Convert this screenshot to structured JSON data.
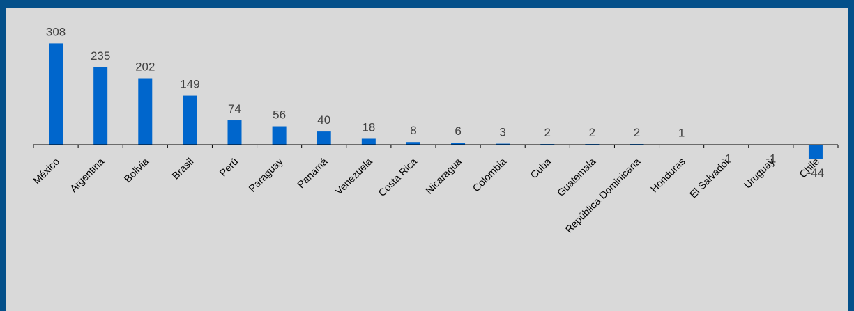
{
  "chart_data": {
    "type": "bar",
    "categories": [
      "México",
      "Argentina",
      "Bolivia",
      "Brasil",
      "Perú",
      "Paraguay",
      "Panamá",
      "Venezuela",
      "Costa Rica",
      "Nicaragua",
      "Colombia",
      "Cuba",
      "Guatemala",
      "República Dominicana",
      "Honduras",
      "El Salvador",
      "Uruguay",
      "Chile"
    ],
    "values": [
      308,
      235,
      202,
      149,
      74,
      56,
      40,
      18,
      8,
      6,
      3,
      2,
      2,
      2,
      1,
      -1,
      -1,
      -44
    ],
    "title": "",
    "xlabel": "",
    "ylabel": "",
    "ylim": [
      -50,
      320
    ],
    "grid": false,
    "legend": "none",
    "colors": {
      "bar": "#0066cc",
      "background": "#d9d9d9",
      "frame": "#04508a"
    }
  }
}
